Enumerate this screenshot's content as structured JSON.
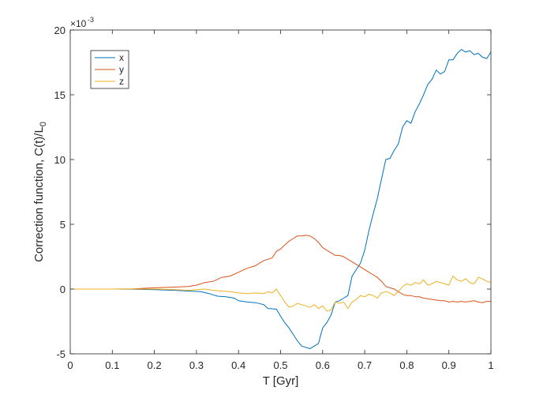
{
  "chart_data": {
    "type": "line",
    "title": "",
    "xlabel": "T [Gyr]",
    "ylabel_main": "Correction function, C(t)/L",
    "ylabel_sub": "0",
    "y_multiplier": {
      "base": "×10",
      "exponent": "-3"
    },
    "xlim": [
      0,
      1
    ],
    "ylim": [
      -5,
      20
    ],
    "x_ticks": [
      0,
      0.1,
      0.2,
      0.3,
      0.4,
      0.5,
      0.6,
      0.7,
      0.8,
      0.9,
      1
    ],
    "x_tick_labels": [
      "0",
      "0.1",
      "0.2",
      "0.3",
      "0.4",
      "0.5",
      "0.6",
      "0.7",
      "0.8",
      "0.9",
      "1"
    ],
    "y_ticks": [
      -5,
      0,
      5,
      10,
      15,
      20
    ],
    "y_tick_labels": [
      "-5",
      "0",
      "5",
      "10",
      "15",
      "20"
    ],
    "grid": false,
    "legend_position": "top-left",
    "series": [
      {
        "name": "x",
        "color": "#0072BD",
        "points": [
          [
            0,
            0
          ],
          [
            0.05,
            0
          ],
          [
            0.1,
            0
          ],
          [
            0.15,
            -0.02
          ],
          [
            0.2,
            -0.05
          ],
          [
            0.25,
            -0.1
          ],
          [
            0.28,
            -0.15
          ],
          [
            0.31,
            -0.2
          ],
          [
            0.33,
            -0.35
          ],
          [
            0.35,
            -0.55
          ],
          [
            0.37,
            -0.6
          ],
          [
            0.39,
            -0.7
          ],
          [
            0.4,
            -0.9
          ],
          [
            0.42,
            -1.0
          ],
          [
            0.44,
            -1.05
          ],
          [
            0.46,
            -1.2
          ],
          [
            0.47,
            -1.5
          ],
          [
            0.49,
            -1.55
          ],
          [
            0.5,
            -2.1
          ],
          [
            0.51,
            -2.6
          ],
          [
            0.52,
            -3.0
          ],
          [
            0.53,
            -3.5
          ],
          [
            0.54,
            -4.0
          ],
          [
            0.55,
            -4.4
          ],
          [
            0.56,
            -4.5
          ],
          [
            0.57,
            -4.6
          ],
          [
            0.58,
            -4.4
          ],
          [
            0.59,
            -4.2
          ],
          [
            0.6,
            -3.0
          ],
          [
            0.61,
            -2.6
          ],
          [
            0.62,
            -2.0
          ],
          [
            0.63,
            -1.0
          ],
          [
            0.64,
            -0.9
          ],
          [
            0.65,
            -0.7
          ],
          [
            0.66,
            -0.5
          ],
          [
            0.67,
            1.0
          ],
          [
            0.68,
            1.5
          ],
          [
            0.69,
            2.0
          ],
          [
            0.7,
            3.0
          ],
          [
            0.71,
            4.5
          ],
          [
            0.72,
            5.8
          ],
          [
            0.73,
            7.0
          ],
          [
            0.74,
            8.5
          ],
          [
            0.75,
            10.0
          ],
          [
            0.76,
            10.1
          ],
          [
            0.77,
            10.7
          ],
          [
            0.78,
            11.2
          ],
          [
            0.79,
            12.5
          ],
          [
            0.8,
            13.0
          ],
          [
            0.81,
            12.8
          ],
          [
            0.82,
            13.7
          ],
          [
            0.83,
            14.3
          ],
          [
            0.84,
            15.0
          ],
          [
            0.85,
            15.8
          ],
          [
            0.86,
            16.2
          ],
          [
            0.87,
            16.9
          ],
          [
            0.88,
            16.6
          ],
          [
            0.89,
            16.8
          ],
          [
            0.9,
            17.7
          ],
          [
            0.91,
            17.7
          ],
          [
            0.92,
            18.2
          ],
          [
            0.93,
            18.5
          ],
          [
            0.94,
            18.3
          ],
          [
            0.95,
            18.4
          ],
          [
            0.96,
            18.1
          ],
          [
            0.97,
            18.2
          ],
          [
            0.98,
            17.9
          ],
          [
            0.99,
            17.8
          ],
          [
            1.0,
            18.3
          ]
        ]
      },
      {
        "name": "y",
        "color": "#D95319",
        "points": [
          [
            0,
            0
          ],
          [
            0.05,
            0
          ],
          [
            0.1,
            0
          ],
          [
            0.15,
            0.02
          ],
          [
            0.2,
            0.1
          ],
          [
            0.25,
            0.15
          ],
          [
            0.28,
            0.2
          ],
          [
            0.3,
            0.3
          ],
          [
            0.32,
            0.5
          ],
          [
            0.34,
            0.6
          ],
          [
            0.36,
            0.9
          ],
          [
            0.38,
            1.0
          ],
          [
            0.4,
            1.3
          ],
          [
            0.42,
            1.6
          ],
          [
            0.44,
            1.8
          ],
          [
            0.46,
            2.2
          ],
          [
            0.48,
            2.4
          ],
          [
            0.49,
            2.9
          ],
          [
            0.5,
            3.1
          ],
          [
            0.51,
            3.4
          ],
          [
            0.52,
            3.7
          ],
          [
            0.53,
            3.9
          ],
          [
            0.54,
            4.1
          ],
          [
            0.55,
            4.1
          ],
          [
            0.56,
            4.15
          ],
          [
            0.57,
            4.1
          ],
          [
            0.58,
            3.9
          ],
          [
            0.59,
            3.6
          ],
          [
            0.6,
            3.2
          ],
          [
            0.61,
            3.0
          ],
          [
            0.62,
            2.8
          ],
          [
            0.63,
            2.6
          ],
          [
            0.64,
            2.6
          ],
          [
            0.65,
            2.5
          ],
          [
            0.66,
            2.3
          ],
          [
            0.67,
            2.1
          ],
          [
            0.68,
            1.9
          ],
          [
            0.69,
            1.7
          ],
          [
            0.7,
            1.5
          ],
          [
            0.71,
            1.3
          ],
          [
            0.72,
            1.1
          ],
          [
            0.73,
            0.9
          ],
          [
            0.74,
            0.6
          ],
          [
            0.75,
            0.2
          ],
          [
            0.76,
            0.1
          ],
          [
            0.77,
            0.0
          ],
          [
            0.78,
            -0.2
          ],
          [
            0.79,
            -0.4
          ],
          [
            0.8,
            -0.5
          ],
          [
            0.81,
            -0.5
          ],
          [
            0.82,
            -0.6
          ],
          [
            0.83,
            -0.6
          ],
          [
            0.84,
            -0.7
          ],
          [
            0.85,
            -0.75
          ],
          [
            0.86,
            -0.8
          ],
          [
            0.87,
            -0.85
          ],
          [
            0.88,
            -0.9
          ],
          [
            0.89,
            -0.9
          ],
          [
            0.9,
            -1.0
          ],
          [
            0.91,
            -0.95
          ],
          [
            0.92,
            -1.0
          ],
          [
            0.93,
            -0.95
          ],
          [
            0.94,
            -1.0
          ],
          [
            0.95,
            -0.95
          ],
          [
            0.96,
            -0.9
          ],
          [
            0.97,
            -1.0
          ],
          [
            0.98,
            -1.05
          ],
          [
            0.99,
            -0.95
          ],
          [
            1.0,
            -0.95
          ]
        ]
      },
      {
        "name": "z",
        "color": "#EDB120",
        "points": [
          [
            0,
            0
          ],
          [
            0.05,
            0
          ],
          [
            0.1,
            0
          ],
          [
            0.15,
            0
          ],
          [
            0.2,
            0
          ],
          [
            0.25,
            -0.05
          ],
          [
            0.28,
            -0.1
          ],
          [
            0.3,
            -0.05
          ],
          [
            0.32,
            0.0
          ],
          [
            0.34,
            -0.1
          ],
          [
            0.36,
            -0.15
          ],
          [
            0.38,
            -0.2
          ],
          [
            0.4,
            -0.3
          ],
          [
            0.42,
            -0.35
          ],
          [
            0.44,
            -0.3
          ],
          [
            0.46,
            -0.35
          ],
          [
            0.47,
            -0.2
          ],
          [
            0.48,
            -0.3
          ],
          [
            0.49,
            0.0
          ],
          [
            0.5,
            -0.5
          ],
          [
            0.51,
            -1.0
          ],
          [
            0.52,
            -1.4
          ],
          [
            0.53,
            -1.3
          ],
          [
            0.54,
            -1.1
          ],
          [
            0.55,
            -1.2
          ],
          [
            0.56,
            -1.3
          ],
          [
            0.57,
            -1.4
          ],
          [
            0.58,
            -1.2
          ],
          [
            0.59,
            -1.5
          ],
          [
            0.6,
            -1.3
          ],
          [
            0.61,
            -1.7
          ],
          [
            0.62,
            -1.6
          ],
          [
            0.63,
            -1.0
          ],
          [
            0.64,
            -1.1
          ],
          [
            0.65,
            -1.0
          ],
          [
            0.66,
            -1.5
          ],
          [
            0.67,
            -1.0
          ],
          [
            0.68,
            -0.8
          ],
          [
            0.69,
            -0.5
          ],
          [
            0.7,
            -0.6
          ],
          [
            0.71,
            -0.4
          ],
          [
            0.72,
            -0.5
          ],
          [
            0.73,
            -0.7
          ],
          [
            0.74,
            -0.3
          ],
          [
            0.75,
            -0.2
          ],
          [
            0.76,
            -0.3
          ],
          [
            0.77,
            -0.5
          ],
          [
            0.78,
            -0.2
          ],
          [
            0.79,
            0.2
          ],
          [
            0.8,
            0.4
          ],
          [
            0.81,
            0.3
          ],
          [
            0.82,
            0.5
          ],
          [
            0.83,
            0.4
          ],
          [
            0.84,
            0.7
          ],
          [
            0.85,
            0.3
          ],
          [
            0.86,
            0.4
          ],
          [
            0.87,
            0.6
          ],
          [
            0.88,
            0.5
          ],
          [
            0.89,
            0.4
          ],
          [
            0.9,
            0.3
          ],
          [
            0.91,
            1.0
          ],
          [
            0.92,
            0.7
          ],
          [
            0.93,
            0.6
          ],
          [
            0.94,
            0.8
          ],
          [
            0.95,
            0.5
          ],
          [
            0.96,
            0.4
          ],
          [
            0.97,
            0.9
          ],
          [
            0.98,
            0.8
          ],
          [
            0.99,
            0.6
          ],
          [
            1.0,
            0.5
          ]
        ]
      }
    ]
  }
}
